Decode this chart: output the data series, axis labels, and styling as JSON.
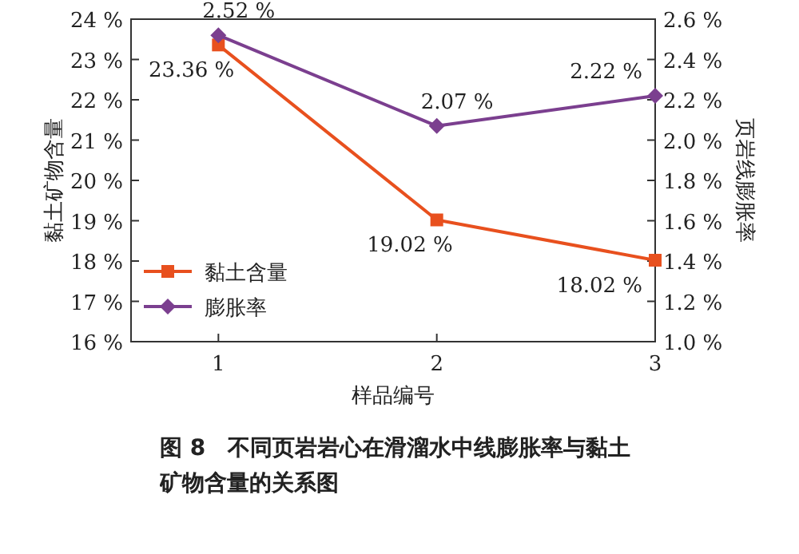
{
  "chart_data": {
    "type": "line",
    "title": "图 8　不同页岩岩心在滑溜水中线膨胀率与黏土矿物含量的关系图",
    "xlabel": "样品编号",
    "ylabel": "黏土矿物含量",
    "y2label": "页岩线膨胀率",
    "x": [
      1,
      2,
      3
    ],
    "xlim": [
      0.6,
      3.0
    ],
    "xticks": [
      1,
      2,
      3
    ],
    "ylim": [
      16,
      24
    ],
    "yticks": [
      {
        "value": 16,
        "label": "16 %"
      },
      {
        "value": 17,
        "label": "17 %"
      },
      {
        "value": 18,
        "label": "18 %"
      },
      {
        "value": 19,
        "label": "19 %"
      },
      {
        "value": 20,
        "label": "20 %"
      },
      {
        "value": 21,
        "label": "21 %"
      },
      {
        "value": 22,
        "label": "22 %"
      },
      {
        "value": 23,
        "label": "23 %"
      },
      {
        "value": 24,
        "label": "24 %"
      }
    ],
    "y2lim": [
      1.0,
      2.6
    ],
    "y2ticks": [
      {
        "value": 1.0,
        "label": "1.0 %"
      },
      {
        "value": 1.2,
        "label": "1.2 %"
      },
      {
        "value": 1.4,
        "label": "1.4 %"
      },
      {
        "value": 1.6,
        "label": "1.6 %"
      },
      {
        "value": 1.8,
        "label": "1.8 %"
      },
      {
        "value": 2.0,
        "label": "2.0 %"
      },
      {
        "value": 2.2,
        "label": "2.2 %"
      },
      {
        "value": 2.4,
        "label": "2.4 %"
      },
      {
        "value": 2.6,
        "label": "2.6 %"
      }
    ],
    "series": [
      {
        "name": "黏土含量",
        "color": "#e8501e",
        "marker": "square",
        "values": [
          23.36,
          19.02,
          18.02
        ],
        "value_labels": [
          "23.36 %",
          "19.02 %",
          "18.02 %"
        ]
      },
      {
        "name": "膨胀率",
        "color": "#7b3f8f",
        "marker": "diamond",
        "axis": "y2",
        "values": [
          2.52,
          2.07,
          2.22
        ],
        "value_labels": [
          "2.52 %",
          "2.07 %",
          "2.22 %"
        ]
      }
    ],
    "legend": "bottom left",
    "grid": false,
    "line_style": "solid"
  }
}
